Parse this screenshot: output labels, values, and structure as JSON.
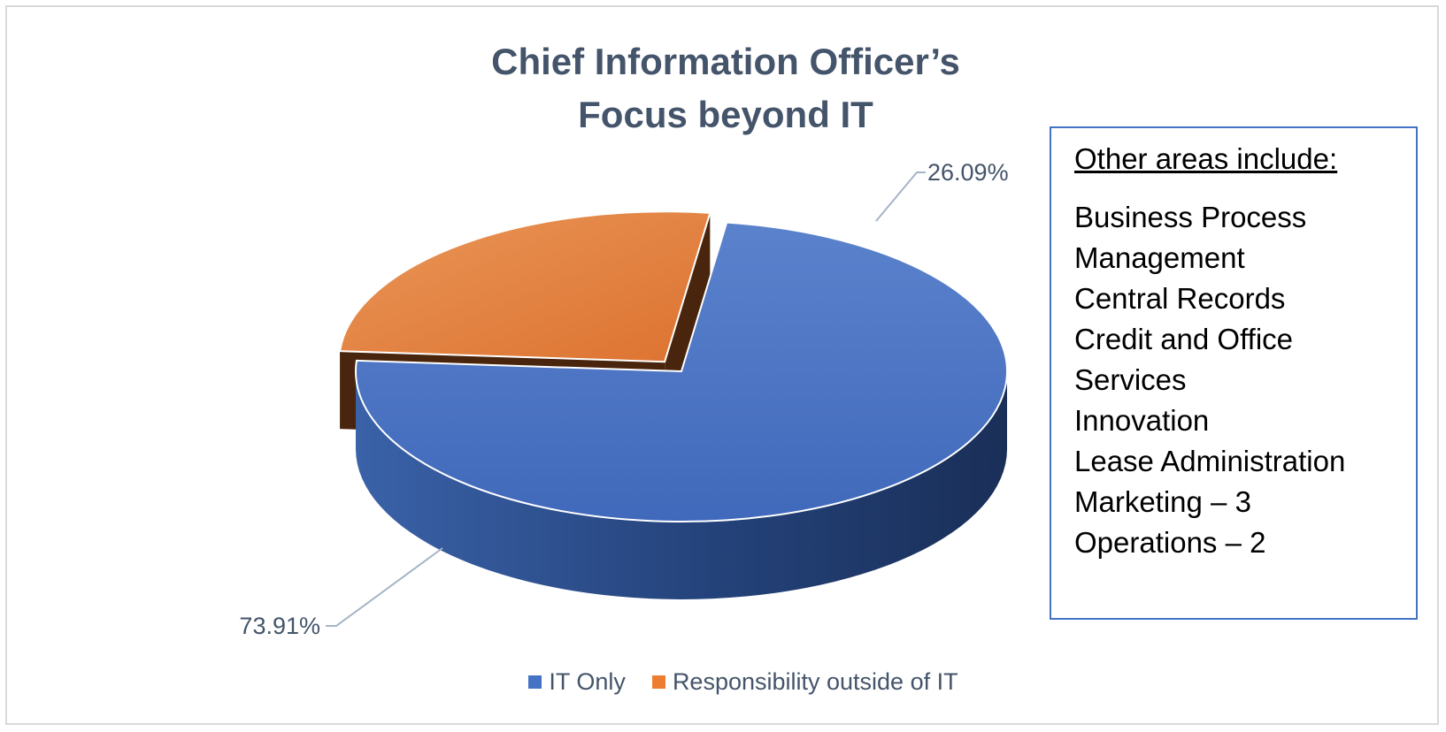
{
  "chart_data": {
    "type": "pie",
    "title": [
      "Chief Information Officer’s",
      "Focus beyond IT"
    ],
    "slices": [
      {
        "name": "IT Only",
        "value": 73.91,
        "label": "73.91%",
        "color": "#4472c4"
      },
      {
        "name": "Responsibility outside of IT",
        "value": 26.09,
        "label": "26.09%",
        "color": "#ed7d31"
      }
    ],
    "legend_position": "bottom"
  },
  "note": {
    "heading": "Other areas include:",
    "items": [
      "Business Process",
      "Management",
      "Central Records",
      "Credit and Office",
      "Services",
      "Innovation",
      "Lease Administration",
      "Marketing – 3",
      "Operations – 2"
    ]
  }
}
